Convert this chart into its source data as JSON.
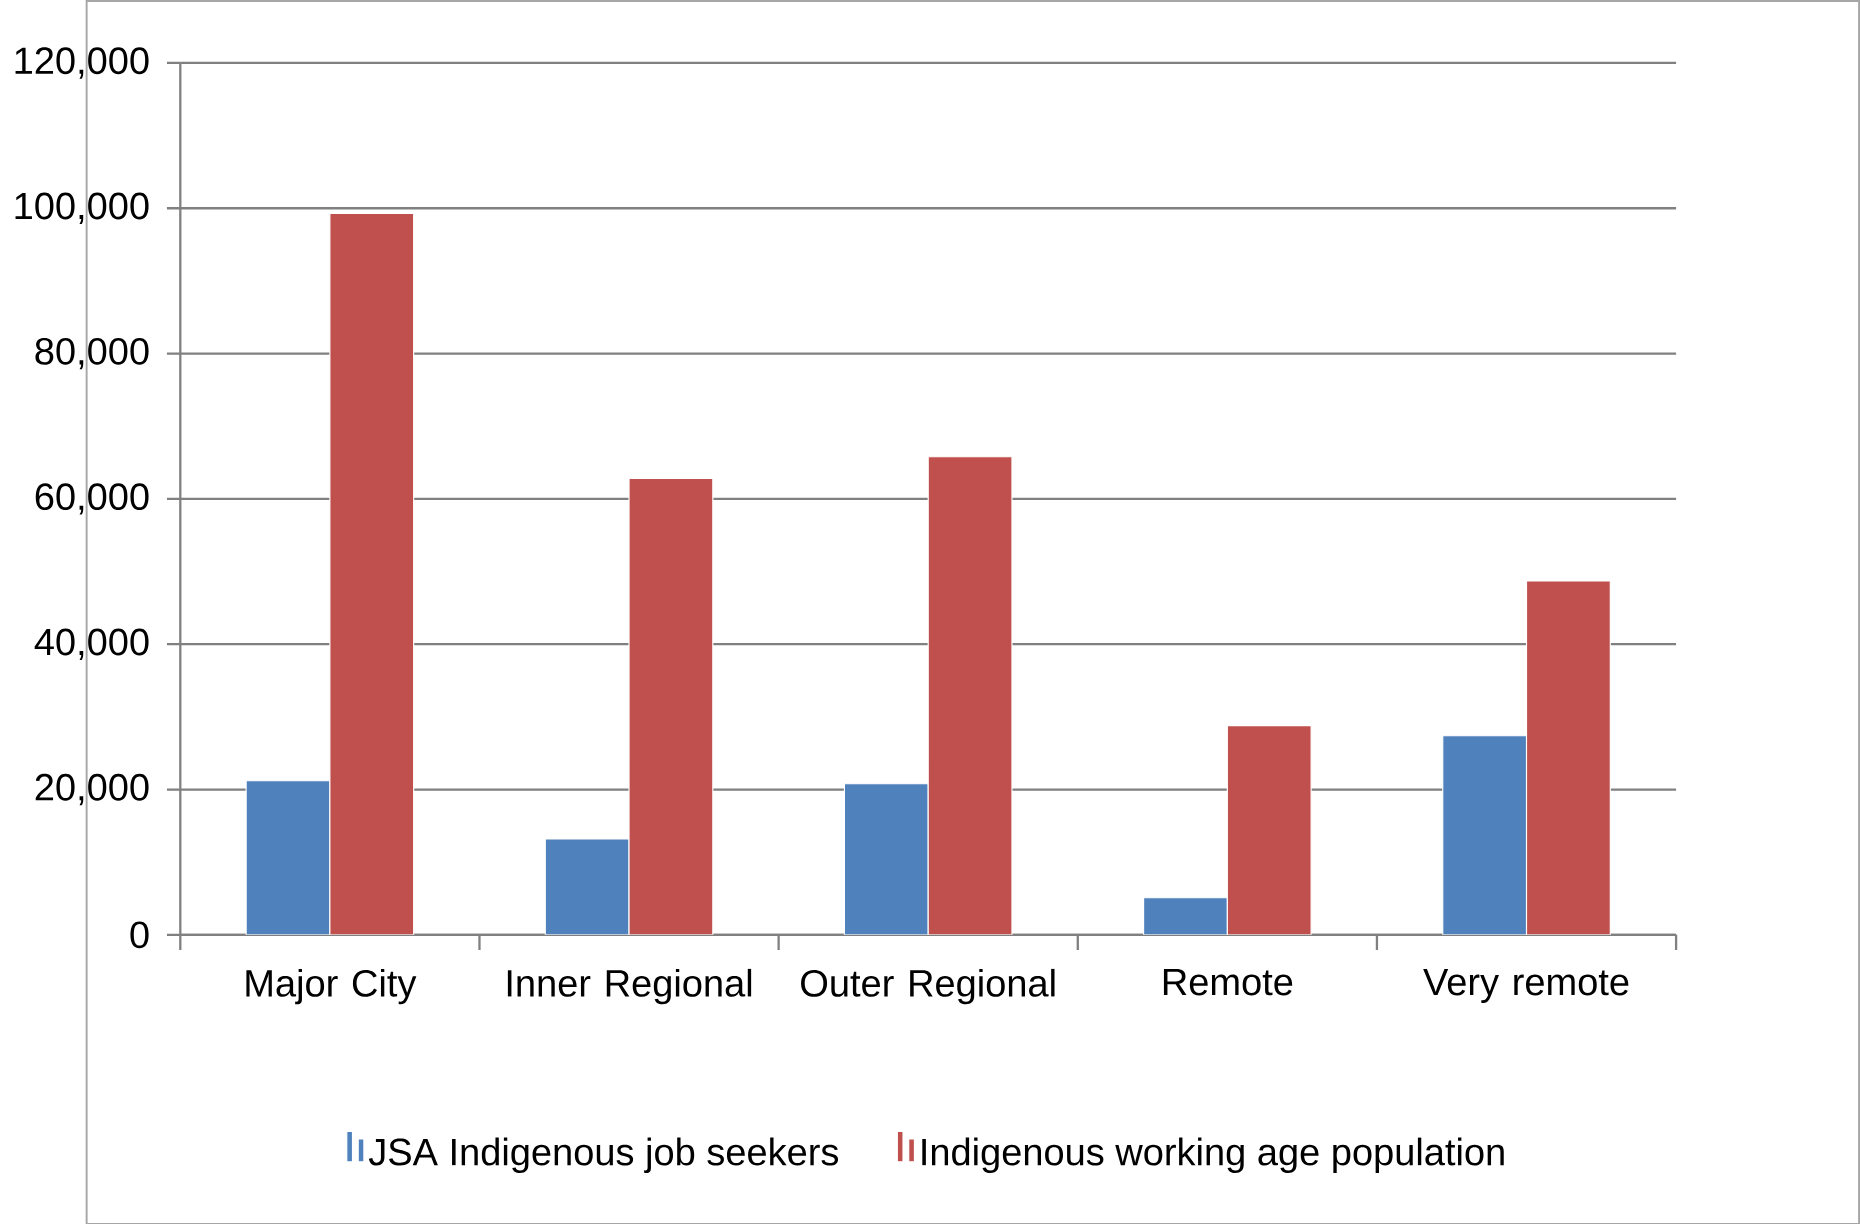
{
  "chart_data": {
    "type": "bar",
    "categories": [
      "Major City",
      "Inner Regional",
      "Outer Regional",
      "Remote",
      "Very remote"
    ],
    "series": [
      {
        "name": "JSA Indigenous job seekers",
        "color": "#4f81bd",
        "values": [
          21200,
          13200,
          20800,
          5100,
          27400
        ]
      },
      {
        "name": "Indigenous working age population",
        "color": "#c0504d",
        "values": [
          99300,
          62800,
          65800,
          28800,
          48700
        ]
      }
    ],
    "ylim": [
      0,
      120000
    ],
    "yticks": [
      {
        "value": 0,
        "label": "0"
      },
      {
        "value": 20000,
        "label": "20,000"
      },
      {
        "value": 40000,
        "label": "40,000"
      },
      {
        "value": 60000,
        "label": "60,000"
      },
      {
        "value": 80000,
        "label": "80,000"
      },
      {
        "value": 100000,
        "label": "100,000"
      },
      {
        "value": 120000,
        "label": "120,000"
      }
    ],
    "grid": "y",
    "legend": "bottom"
  }
}
